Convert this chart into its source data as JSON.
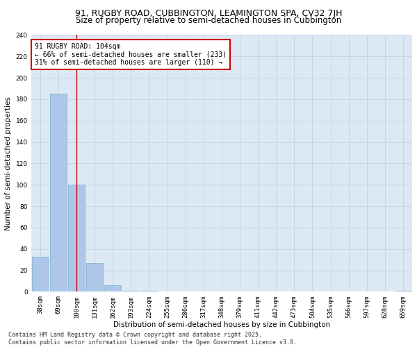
{
  "title_line1": "91, RUGBY ROAD, CUBBINGTON, LEAMINGTON SPA, CV32 7JH",
  "title_line2": "Size of property relative to semi-detached houses in Cubbington",
  "xlabel": "Distribution of semi-detached houses by size in Cubbington",
  "ylabel": "Number of semi-detached properties",
  "categories": [
    "38sqm",
    "69sqm",
    "100sqm",
    "131sqm",
    "162sqm",
    "193sqm",
    "224sqm",
    "255sqm",
    "286sqm",
    "317sqm",
    "348sqm",
    "379sqm",
    "411sqm",
    "442sqm",
    "473sqm",
    "504sqm",
    "535sqm",
    "566sqm",
    "597sqm",
    "628sqm",
    "659sqm"
  ],
  "values": [
    33,
    185,
    100,
    27,
    6,
    1,
    1,
    0,
    0,
    0,
    0,
    0,
    0,
    0,
    0,
    0,
    0,
    0,
    0,
    0,
    1
  ],
  "bar_color": "#aec6e8",
  "bar_edge_color": "#7aafd4",
  "vline_x": 2,
  "vline_color": "#cc0000",
  "annotation_text": "91 RUGBY ROAD: 104sqm\n← 66% of semi-detached houses are smaller (233)\n31% of semi-detached houses are larger (110) →",
  "annotation_box_color": "#ffffff",
  "annotation_border_color": "#cc0000",
  "ylim": [
    0,
    240
  ],
  "yticks": [
    0,
    20,
    40,
    60,
    80,
    100,
    120,
    140,
    160,
    180,
    200,
    220,
    240
  ],
  "grid_color": "#c8d4e8",
  "bg_color": "#dce8f4",
  "footer_line1": "Contains HM Land Registry data © Crown copyright and database right 2025.",
  "footer_line2": "Contains public sector information licensed under the Open Government Licence v3.0.",
  "title_fontsize": 9,
  "subtitle_fontsize": 8.5,
  "axis_label_fontsize": 7.5,
  "tick_fontsize": 6.5,
  "annotation_fontsize": 7,
  "footer_fontsize": 6
}
